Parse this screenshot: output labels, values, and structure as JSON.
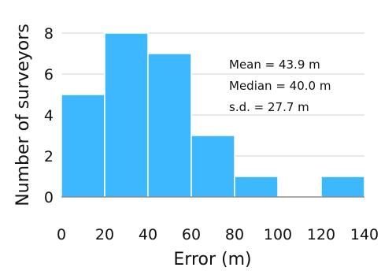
{
  "chart_data": {
    "type": "bar",
    "title": "",
    "xlabel": "Error (m)",
    "ylabel": "Number of surveyors",
    "bins": [
      {
        "start": 0,
        "end": 20,
        "value": 5
      },
      {
        "start": 20,
        "end": 40,
        "value": 8
      },
      {
        "start": 40,
        "end": 60,
        "value": 7
      },
      {
        "start": 60,
        "end": 80,
        "value": 3
      },
      {
        "start": 80,
        "end": 100,
        "value": 1
      },
      {
        "start": 100,
        "end": 120,
        "value": 0
      },
      {
        "start": 120,
        "end": 140,
        "value": 1
      }
    ],
    "xlim": [
      0,
      140
    ],
    "ylim": [
      0,
      8
    ],
    "xticks": [
      "0",
      "20",
      "40",
      "60",
      "80",
      "100",
      "120",
      "140"
    ],
    "yticks": [
      "0",
      "2",
      "4",
      "6",
      "8"
    ],
    "grid": true,
    "color": "#3db8ff",
    "annotations": [
      "Mean = 43.9 m",
      "Median = 40.0 m",
      "s.d. = 27.7 m"
    ]
  }
}
